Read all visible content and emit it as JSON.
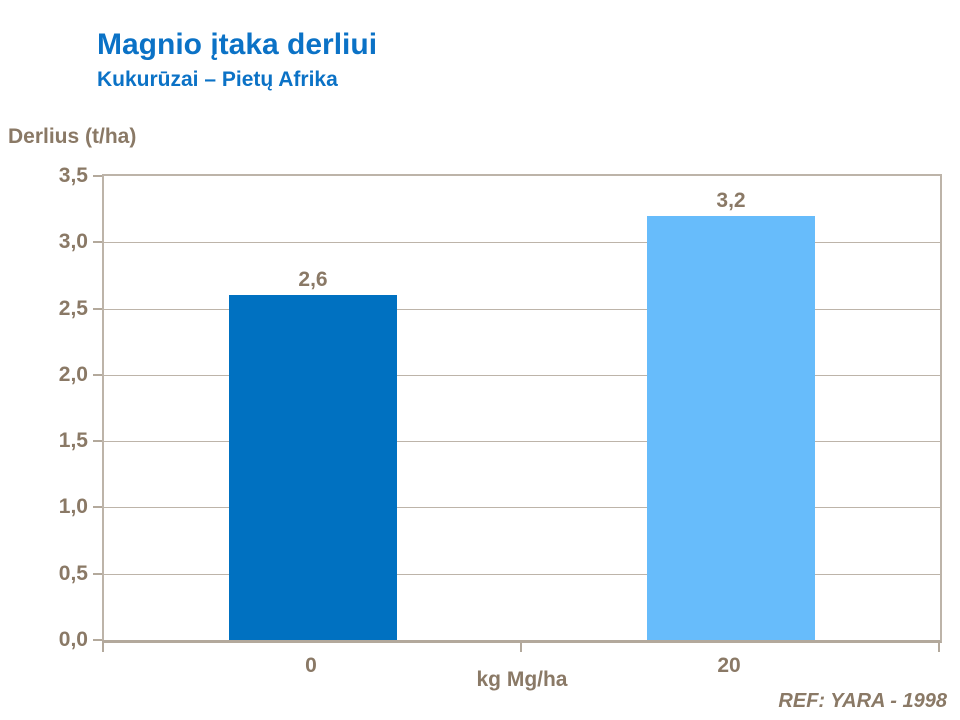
{
  "header": {
    "title": "Magnio įtaka derliui",
    "subtitle": "Kukurūzai – Pietų Afrika"
  },
  "chart_data": {
    "type": "bar",
    "title": "Magnio įtaka derliui",
    "subtitle": "Kukurūzai – Pietų Afrika",
    "ylabel": "Derlius (t/ha)",
    "xlabel": "kg Mg/ha",
    "categories": [
      "0",
      "20"
    ],
    "values": [
      2.6,
      3.2
    ],
    "value_labels": [
      "2,6",
      "3,2"
    ],
    "ylim": [
      0,
      3.5
    ],
    "ytick_step": 0.5,
    "ytick_labels": [
      "0,0",
      "0,5",
      "1,0",
      "1,5",
      "2,0",
      "2,5",
      "3,0",
      "3,5"
    ],
    "grid": true,
    "legend": "none",
    "bar_colors": [
      "#0071C1",
      "#67BCFB"
    ]
  },
  "footer": {
    "ref": "REF: YARA - 1998"
  },
  "colors": {
    "title_blue": "#0B72C6",
    "axis_text_brown": "#8A7966",
    "grid_line": "#BDB4A9",
    "axis_line": "#B3A99C",
    "bar_dark_blue": "#0071C1",
    "bar_light_blue": "#67BCFB",
    "background": "#FFFFFF"
  }
}
